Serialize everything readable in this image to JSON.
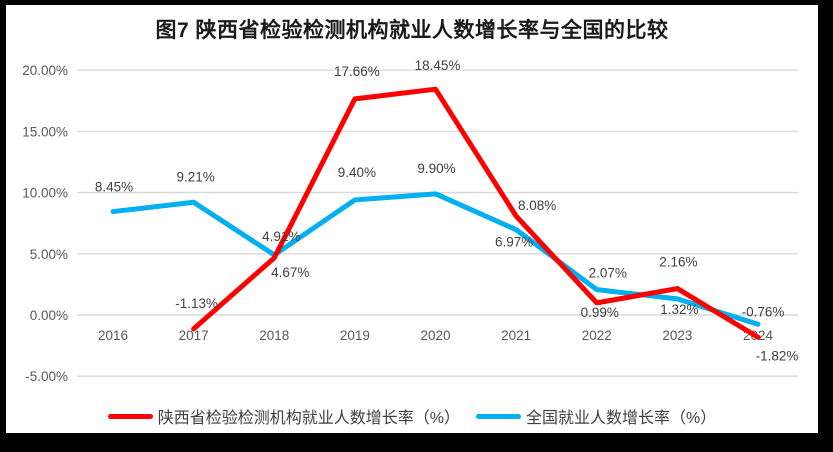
{
  "title": "图7 陕西省检验检测机构就业人数增长率与全国的比较",
  "chart_data": {
    "type": "line",
    "title": "图7 陕西省检验检测机构就业人数增长率与全国的比较",
    "categories": [
      "2016",
      "2017",
      "2018",
      "2019",
      "2020",
      "2021",
      "2022",
      "2023",
      "2024"
    ],
    "series": [
      {
        "name": "陕西省检验检测机构就业人数增长率（%）",
        "color": "#fe0000",
        "values": [
          null,
          -1.13,
          4.67,
          17.66,
          18.45,
          8.08,
          0.99,
          2.16,
          -1.82
        ],
        "data_labels": [
          null,
          "-1.13%",
          "4.67%",
          "17.66%",
          "18.45%",
          "8.08%",
          "0.99%",
          "2.16%",
          "-1.82%"
        ],
        "label_offsets": [
          [
            0,
            0
          ],
          [
            3,
            -26
          ],
          [
            16,
            14
          ],
          [
            2,
            -28
          ],
          [
            2,
            -24
          ],
          [
            21,
            -11
          ],
          [
            3,
            9
          ],
          [
            1,
            -27
          ],
          [
            19,
            18
          ]
        ]
      },
      {
        "name": "全国就业人数增长率（%）",
        "color": "#00b0f0",
        "values": [
          8.45,
          9.21,
          4.91,
          9.4,
          9.9,
          6.97,
          2.07,
          1.32,
          -0.76
        ],
        "data_labels": [
          "8.45%",
          "9.21%",
          "4.91%",
          "9.40%",
          "9.90%",
          "6.97%",
          "2.07%",
          "1.32%",
          "-0.76%"
        ],
        "label_offsets": [
          [
            1,
            -25
          ],
          [
            2,
            -26
          ],
          [
            7,
            -19
          ],
          [
            2,
            -28
          ],
          [
            1,
            -26
          ],
          [
            -2,
            12
          ],
          [
            11,
            -17
          ],
          [
            2,
            10
          ],
          [
            5,
            -13
          ]
        ]
      }
    ],
    "y_axis": {
      "ticks": [
        {
          "label": "20.00%",
          "value": 20
        },
        {
          "label": "15.00%",
          "value": 15
        },
        {
          "label": "10.00%",
          "value": 10
        },
        {
          "label": "5.00%",
          "value": 5
        },
        {
          "label": "0.00%",
          "value": 0
        },
        {
          "label": "-5.00%",
          "value": -5
        }
      ],
      "range": [
        -5,
        20
      ]
    },
    "grid": true,
    "legend_position": "bottom",
    "colors": {
      "grid": "#d9d9d9",
      "axis_text": "#595959",
      "data_label_text": "#404040",
      "frame": "#000000"
    }
  }
}
